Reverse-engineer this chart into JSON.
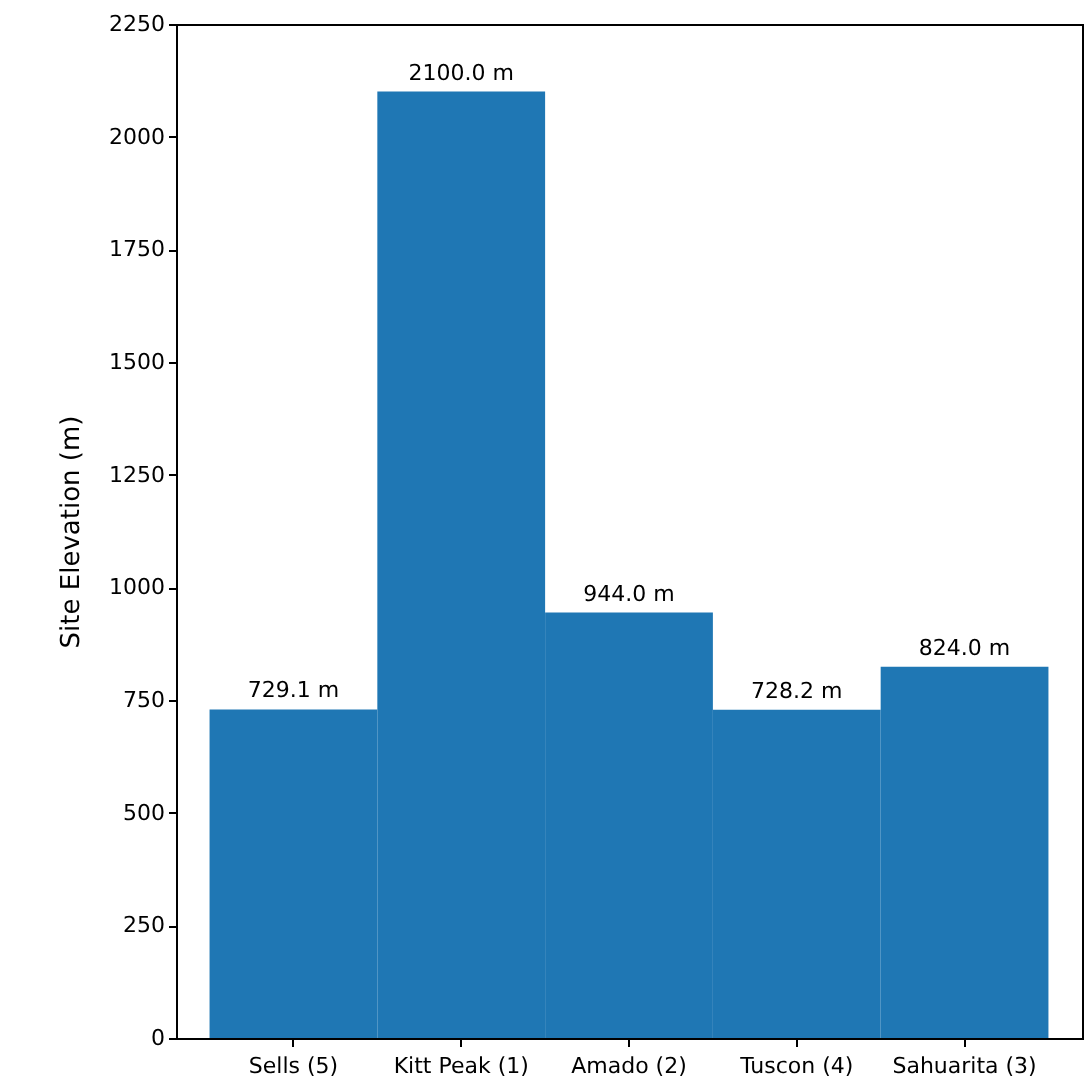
{
  "chart_data": {
    "type": "bar",
    "ylabel": "Site Elevation (m)",
    "categories": [
      "Sells (5)",
      "Kitt Peak (1)",
      "Amado (2)",
      "Tuscon (4)",
      "Sahuarita (3)"
    ],
    "values": [
      729.1,
      2100.0,
      944.0,
      728.2,
      824.0
    ],
    "value_labels": [
      "729.1 m",
      "2100.0 m",
      "944.0 m",
      "728.2 m",
      "824.0 m"
    ],
    "color": "#1f77b4",
    "ylim": [
      0,
      2250
    ],
    "yticks": [
      0,
      250,
      500,
      750,
      1000,
      1250,
      1500,
      1750,
      2000,
      2250
    ],
    "grid": false
  }
}
